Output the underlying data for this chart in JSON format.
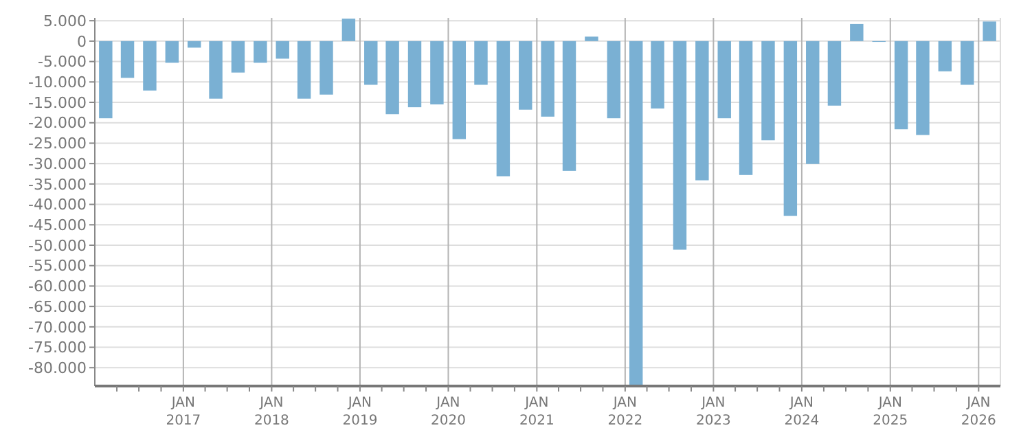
{
  "chart_data": {
    "type": "bar",
    "color": "#7ab0d3",
    "grid": true,
    "x": [
      "2016-02-15",
      "2016-05-15",
      "2016-08-15",
      "2016-11-15",
      "2017-02-15",
      "2017-05-15",
      "2017-08-15",
      "2017-11-15",
      "2018-02-15",
      "2018-05-15",
      "2018-08-15",
      "2018-11-15",
      "2019-02-15",
      "2019-05-15",
      "2019-08-15",
      "2019-11-15",
      "2020-02-15",
      "2020-05-15",
      "2020-08-15",
      "2020-11-15",
      "2021-02-15",
      "2021-05-15",
      "2021-08-15",
      "2021-11-15",
      "2022-02-15",
      "2022-05-15",
      "2022-08-15",
      "2022-11-15",
      "2023-02-15",
      "2023-05-15",
      "2023-08-15",
      "2023-11-15",
      "2024-02-15",
      "2024-05-15",
      "2024-08-15",
      "2024-11-15",
      "2025-02-15",
      "2025-05-15",
      "2025-08-15",
      "2025-11-15",
      "2026-02-15"
    ],
    "values": [
      -18900,
      -9000,
      -12100,
      -5300,
      -1600,
      -14100,
      -7700,
      -5300,
      -4300,
      -14100,
      -13100,
      5500,
      -10700,
      -17900,
      -16200,
      -15500,
      -24000,
      -10700,
      -33100,
      -16800,
      -18500,
      -31800,
      1100,
      -18900,
      -84500,
      -16500,
      -51100,
      -34100,
      -18900,
      -32800,
      -24300,
      -42800,
      -30100,
      -15800,
      4200,
      -200,
      -21600,
      -23000,
      -7400,
      -10700,
      4800
    ],
    "ylim": [
      -84500,
      5700
    ],
    "yticks": [
      {
        "value": 5000,
        "label": "5.000"
      },
      0,
      {
        "value": -5000,
        "label": "-5.000"
      },
      {
        "value": -10000,
        "label": "-10.000"
      },
      {
        "value": -15000,
        "label": "-15.000"
      },
      {
        "value": -20000,
        "label": "-20.000"
      },
      {
        "value": -25000,
        "label": "-25.000"
      },
      {
        "value": -30000,
        "label": "-30.000"
      },
      {
        "value": -35000,
        "label": "-35.000"
      },
      {
        "value": -40000,
        "label": "-40.000"
      },
      {
        "value": -45000,
        "label": "-45.000"
      },
      {
        "value": -50000,
        "label": "-50.000"
      },
      {
        "value": -55000,
        "label": "-55.000"
      },
      {
        "value": -60000,
        "label": "-60.000"
      },
      {
        "value": -65000,
        "label": "-65.000"
      },
      {
        "value": -70000,
        "label": "-70.000"
      },
      {
        "value": -75000,
        "label": "-75.000"
      },
      {
        "value": -80000,
        "label": "-80.000"
      }
    ],
    "xlim": [
      "2016-01-01",
      "2026-04-01"
    ],
    "xticks": [
      {
        "value": "2016-04-01",
        "label": null
      },
      {
        "value": "2016-07-01",
        "label": null
      },
      {
        "value": "2016-10-01",
        "label": null
      },
      {
        "value": "2017-01-01",
        "label": "JAN\n2017"
      },
      {
        "value": "2017-04-01",
        "label": null
      },
      {
        "value": "2017-07-01",
        "label": null
      },
      {
        "value": "2017-10-01",
        "label": null
      },
      {
        "value": "2018-01-01",
        "label": "JAN\n2018"
      },
      {
        "value": "2018-04-01",
        "label": null
      },
      {
        "value": "2018-07-01",
        "label": null
      },
      {
        "value": "2018-10-01",
        "label": null
      },
      {
        "value": "2019-01-01",
        "label": "JAN\n2019"
      },
      {
        "value": "2019-04-01",
        "label": null
      },
      {
        "value": "2019-07-01",
        "label": null
      },
      {
        "value": "2019-10-01",
        "label": null
      },
      {
        "value": "2020-01-01",
        "label": "JAN\n2020"
      },
      {
        "value": "2020-04-01",
        "label": null
      },
      {
        "value": "2020-07-01",
        "label": null
      },
      {
        "value": "2020-10-01",
        "label": null
      },
      {
        "value": "2021-01-01",
        "label": "JAN\n2021"
      },
      {
        "value": "2021-04-01",
        "label": null
      },
      {
        "value": "2021-07-01",
        "label": null
      },
      {
        "value": "2021-10-01",
        "label": null
      },
      {
        "value": "2022-01-01",
        "label": "JAN\n2022"
      },
      {
        "value": "2022-04-01",
        "label": null
      },
      {
        "value": "2022-07-01",
        "label": null
      },
      {
        "value": "2022-10-01",
        "label": null
      },
      {
        "value": "2023-01-01",
        "label": "JAN\n2023"
      },
      {
        "value": "2023-04-01",
        "label": null
      },
      {
        "value": "2023-07-01",
        "label": null
      },
      {
        "value": "2023-10-01",
        "label": null
      },
      {
        "value": "2024-01-01",
        "label": "JAN\n2024"
      },
      {
        "value": "2024-04-01",
        "label": null
      },
      {
        "value": "2024-07-01",
        "label": null
      },
      {
        "value": "2024-10-01",
        "label": null
      },
      {
        "value": "2025-01-01",
        "label": "JAN\n2025"
      },
      {
        "value": "2025-04-01",
        "label": null
      },
      {
        "value": "2025-07-01",
        "label": null
      },
      {
        "value": "2025-10-01",
        "label": null
      },
      {
        "value": "2026-01-01",
        "label": "JAN\n2026"
      }
    ]
  }
}
